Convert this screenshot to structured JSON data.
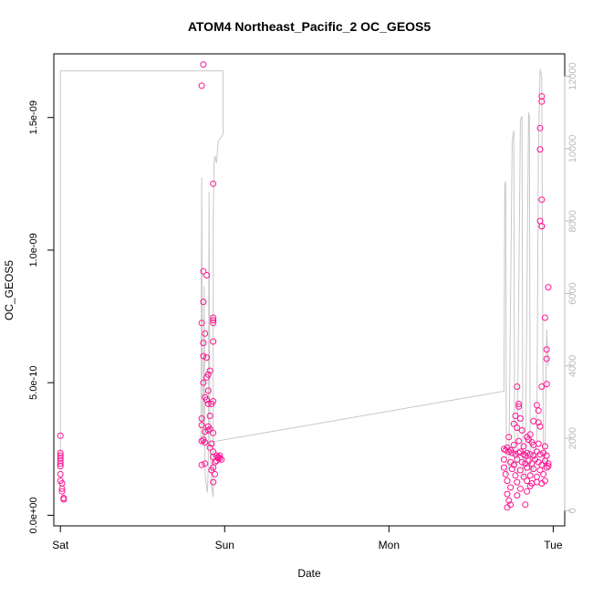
{
  "chart_data": {
    "type": "scatter",
    "title": "ATOM4 Northeast_Pacific_2 OC_GEOS5",
    "xlabel": "Date",
    "ylabel": "OC_GEOS5",
    "x_ticks": [
      "Sat",
      "Sun",
      "Mon",
      "Tue"
    ],
    "y_ticks": [
      "0.0e+00",
      "5.0e-10",
      "1.0e-09",
      "1.5e-09"
    ],
    "y_tick_values": [
      0,
      5e-10,
      1e-09,
      1.5e-09
    ],
    "y_right_ticks": [
      "0",
      "2000",
      "4000",
      "6000",
      "8000",
      "10000",
      "12000"
    ],
    "y_right_tick_values": [
      0,
      2000,
      4000,
      6000,
      8000,
      10000,
      12000
    ],
    "xlim": [
      -0.04,
      3.07
    ],
    "ylim": [
      -4e-11,
      1.74e-09
    ],
    "y_right_lim": [
      -420,
      12620
    ],
    "grid": false,
    "colors": {
      "points": "#ff1493",
      "altitude_line": "#c8c8c8",
      "right_axis": "#bbbbbb",
      "axis": "#000000"
    },
    "series": [
      {
        "kind": "points",
        "points": [
          [
            0.0,
            3e-10
          ],
          [
            0.0,
            2.35e-10
          ],
          [
            0.0,
            2.25e-10
          ],
          [
            0.0,
            2.15e-10
          ],
          [
            0.0,
            2.05e-10
          ],
          [
            0.0,
            1.95e-10
          ],
          [
            0.0,
            1.85e-10
          ],
          [
            0.0,
            1.55e-10
          ],
          [
            0.0,
            1.3e-10
          ],
          [
            0.01,
            1.2e-10
          ],
          [
            0.01,
            1e-10
          ],
          [
            0.01,
            9e-11
          ],
          [
            0.02,
            6.5e-11
          ],
          [
            0.02,
            6e-11
          ],
          [
            0.87,
            1.7e-09
          ],
          [
            0.86,
            1.62e-09
          ],
          [
            0.93,
            1.25e-09
          ],
          [
            0.87,
            9.2e-10
          ],
          [
            0.89,
            9.05e-10
          ],
          [
            0.87,
            8.05e-10
          ],
          [
            0.93,
            7.45e-10
          ],
          [
            0.93,
            7.35e-10
          ],
          [
            0.93,
            7.25e-10
          ],
          [
            0.86,
            7.25e-10
          ],
          [
            0.88,
            6.85e-10
          ],
          [
            0.93,
            6.55e-10
          ],
          [
            0.87,
            6.5e-10
          ],
          [
            0.87,
            6e-10
          ],
          [
            0.89,
            5.95e-10
          ],
          [
            0.91,
            5.45e-10
          ],
          [
            0.9,
            5.3e-10
          ],
          [
            0.89,
            5.2e-10
          ],
          [
            0.87,
            5e-10
          ],
          [
            0.9,
            4.7e-10
          ],
          [
            0.88,
            4.45e-10
          ],
          [
            0.89,
            4.35e-10
          ],
          [
            0.93,
            4.3e-10
          ],
          [
            0.92,
            4.2e-10
          ],
          [
            0.9,
            4.2e-10
          ],
          [
            0.91,
            3.75e-10
          ],
          [
            0.86,
            3.65e-10
          ],
          [
            0.86,
            3.4e-10
          ],
          [
            0.9,
            3.35e-10
          ],
          [
            0.91,
            3.25e-10
          ],
          [
            0.9,
            3.2e-10
          ],
          [
            0.88,
            3.15e-10
          ],
          [
            0.93,
            3.1e-10
          ],
          [
            0.87,
            2.85e-10
          ],
          [
            0.86,
            2.8e-10
          ],
          [
            0.88,
            2.75e-10
          ],
          [
            0.92,
            2.7e-10
          ],
          [
            0.91,
            2.55e-10
          ],
          [
            0.93,
            2.4e-10
          ],
          [
            0.93,
            2.2e-10
          ],
          [
            0.95,
            2.25e-10
          ],
          [
            0.96,
            2.2e-10
          ],
          [
            0.97,
            2.15e-10
          ],
          [
            0.98,
            2.1e-10
          ],
          [
            0.95,
            2.05e-10
          ],
          [
            0.96,
            2.15e-10
          ],
          [
            0.97,
            2.25e-10
          ],
          [
            0.94,
            2e-10
          ],
          [
            0.88,
            1.95e-10
          ],
          [
            0.86,
            1.9e-10
          ],
          [
            0.93,
            1.8e-10
          ],
          [
            0.92,
            1.7e-10
          ],
          [
            0.94,
            1.55e-10
          ],
          [
            0.93,
            1.25e-10
          ],
          [
            2.93,
            1.58e-09
          ],
          [
            2.93,
            1.56e-09
          ],
          [
            2.92,
            1.46e-09
          ],
          [
            2.92,
            1.38e-09
          ],
          [
            2.93,
            1.19e-09
          ],
          [
            2.92,
            1.11e-09
          ],
          [
            2.93,
            1.09e-09
          ],
          [
            2.93,
            1.09e-09
          ],
          [
            2.97,
            8.6e-10
          ],
          [
            2.95,
            7.45e-10
          ],
          [
            2.96,
            6.25e-10
          ],
          [
            2.96,
            5.9e-10
          ],
          [
            2.96,
            4.95e-10
          ],
          [
            2.93,
            4.85e-10
          ],
          [
            2.78,
            4.85e-10
          ],
          [
            2.79,
            4.2e-10
          ],
          [
            2.79,
            4.1e-10
          ],
          [
            2.9,
            4.15e-10
          ],
          [
            2.91,
            3.95e-10
          ],
          [
            2.77,
            3.75e-10
          ],
          [
            2.8,
            3.65e-10
          ],
          [
            2.88,
            3.55e-10
          ],
          [
            2.91,
            3.5e-10
          ],
          [
            2.76,
            3.45e-10
          ],
          [
            2.78,
            3.3e-10
          ],
          [
            2.81,
            3.2e-10
          ],
          [
            2.86,
            3.05e-10
          ],
          [
            2.92,
            3.35e-10
          ],
          [
            2.73,
            2.95e-10
          ],
          [
            2.79,
            2.8e-10
          ],
          [
            2.84,
            2.95e-10
          ],
          [
            2.85,
            2.85e-10
          ],
          [
            2.87,
            2.75e-10
          ],
          [
            2.95,
            2.6e-10
          ],
          [
            2.72,
            2.55e-10
          ],
          [
            2.7,
            2.5e-10
          ],
          [
            2.71,
            2.45e-10
          ],
          [
            2.73,
            2.4e-10
          ],
          [
            2.74,
            2.45e-10
          ],
          [
            2.75,
            2.35e-10
          ],
          [
            2.77,
            2.3e-10
          ],
          [
            2.79,
            2.35e-10
          ],
          [
            2.8,
            2.4e-10
          ],
          [
            2.82,
            2.3e-10
          ],
          [
            2.83,
            2.25e-10
          ],
          [
            2.84,
            2.35e-10
          ],
          [
            2.86,
            2.3e-10
          ],
          [
            2.88,
            2.25e-10
          ],
          [
            2.9,
            2.4e-10
          ],
          [
            2.92,
            2.3e-10
          ],
          [
            2.94,
            2.35e-10
          ],
          [
            2.96,
            2.25e-10
          ],
          [
            2.7,
            2.1e-10
          ],
          [
            2.74,
            2e-10
          ],
          [
            2.76,
            1.9e-10
          ],
          [
            2.78,
            2.1e-10
          ],
          [
            2.81,
            2e-10
          ],
          [
            2.83,
            1.95e-10
          ],
          [
            2.85,
            2.05e-10
          ],
          [
            2.87,
            1.95e-10
          ],
          [
            2.89,
            2.1e-10
          ],
          [
            2.91,
            2e-10
          ],
          [
            2.93,
            1.9e-10
          ],
          [
            2.95,
            2.05e-10
          ],
          [
            2.97,
            1.95e-10
          ],
          [
            2.7,
            1.8e-10
          ],
          [
            2.75,
            1.75e-10
          ],
          [
            2.8,
            1.7e-10
          ],
          [
            2.84,
            1.8e-10
          ],
          [
            2.88,
            1.75e-10
          ],
          [
            2.92,
            1.7e-10
          ],
          [
            2.96,
            1.8e-10
          ],
          [
            2.71,
            1.55e-10
          ],
          [
            2.77,
            1.5e-10
          ],
          [
            2.82,
            1.45e-10
          ],
          [
            2.86,
            1.5e-10
          ],
          [
            2.9,
            1.45e-10
          ],
          [
            2.94,
            1.55e-10
          ],
          [
            2.72,
            1.3e-10
          ],
          [
            2.78,
            1.25e-10
          ],
          [
            2.84,
            1.3e-10
          ],
          [
            2.87,
            1.2e-10
          ],
          [
            2.9,
            1.25e-10
          ],
          [
            2.93,
            1.2e-10
          ],
          [
            2.95,
            1.3e-10
          ],
          [
            2.74,
            1.05e-10
          ],
          [
            2.8,
            1e-10
          ],
          [
            2.86,
            1.1e-10
          ],
          [
            2.72,
            8e-11
          ],
          [
            2.78,
            7.5e-11
          ],
          [
            2.84,
            9e-11
          ],
          [
            2.73,
            5.5e-11
          ],
          [
            2.74,
            4e-11
          ],
          [
            2.72,
            3e-11
          ],
          [
            2.83,
            4e-11
          ],
          [
            2.88,
            2.65e-10
          ],
          [
            2.82,
            2.6e-10
          ],
          [
            2.76,
            2.65e-10
          ],
          [
            2.91,
            2.7e-10
          ],
          [
            2.97,
            1.85e-10
          ]
        ]
      },
      {
        "kind": "line",
        "y_axis": "right",
        "points": [
          [
            0.0,
            1300
          ],
          [
            0.0,
            12150
          ],
          [
            0.01,
            12150
          ],
          [
            0.5,
            12150
          ],
          [
            0.99,
            12150
          ],
          [
            0.99,
            10400
          ],
          [
            0.96,
            10200
          ],
          [
            0.95,
            9600
          ],
          [
            0.94,
            9800
          ],
          [
            0.935,
            9600
          ],
          [
            0.93,
            8000
          ],
          [
            0.93,
            380
          ],
          [
            0.92,
            700
          ],
          [
            0.91,
            1800
          ],
          [
            0.905,
            8800
          ],
          [
            0.9,
            1200
          ],
          [
            0.895,
            500
          ],
          [
            0.885,
            800
          ],
          [
            0.88,
            1100
          ],
          [
            0.875,
            6200
          ],
          [
            0.87,
            1800
          ],
          [
            0.865,
            2500
          ],
          [
            0.86,
            9200
          ],
          [
            0.855,
            1900
          ],
          [
            0.86,
            1850
          ],
          [
            2.7,
            3300
          ],
          [
            2.705,
            9000
          ],
          [
            2.71,
            9100
          ],
          [
            2.715,
            1000
          ],
          [
            2.73,
            1200
          ],
          [
            2.75,
            10200
          ],
          [
            2.76,
            10500
          ],
          [
            2.765,
            1100
          ],
          [
            2.78,
            1000
          ],
          [
            2.8,
            10800
          ],
          [
            2.81,
            10900
          ],
          [
            2.815,
            900
          ],
          [
            2.83,
            1000
          ],
          [
            2.85,
            11000
          ],
          [
            2.855,
            10900
          ],
          [
            2.86,
            1000
          ],
          [
            2.87,
            1200
          ],
          [
            2.88,
            1100
          ],
          [
            2.9,
            2000
          ],
          [
            2.91,
            10000
          ],
          [
            2.92,
            12200
          ],
          [
            2.93,
            12000
          ],
          [
            2.94,
            1200
          ],
          [
            2.95,
            1500
          ],
          [
            2.96,
            5000
          ],
          [
            2.97,
            4000
          ]
        ]
      }
    ]
  }
}
